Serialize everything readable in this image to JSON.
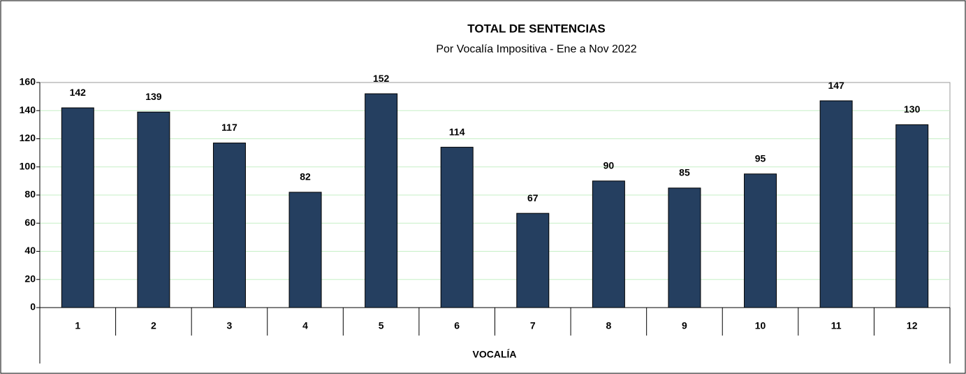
{
  "chart_data": {
    "type": "bar",
    "title": "TOTAL DE SENTENCIAS",
    "subtitle": "Por Vocalía Impositiva - Ene a Nov 2022",
    "x_label": "VOCALÍA",
    "categories": [
      "1",
      "2",
      "3",
      "4",
      "5",
      "6",
      "7",
      "8",
      "9",
      "10",
      "11",
      "12"
    ],
    "values": [
      142,
      139,
      117,
      82,
      152,
      114,
      67,
      90,
      85,
      95,
      147,
      130
    ],
    "color": "#253f60",
    "ylim": [
      0,
      160
    ],
    "yticks": [
      0,
      20,
      40,
      60,
      80,
      100,
      120,
      140,
      160
    ],
    "grid": true
  }
}
